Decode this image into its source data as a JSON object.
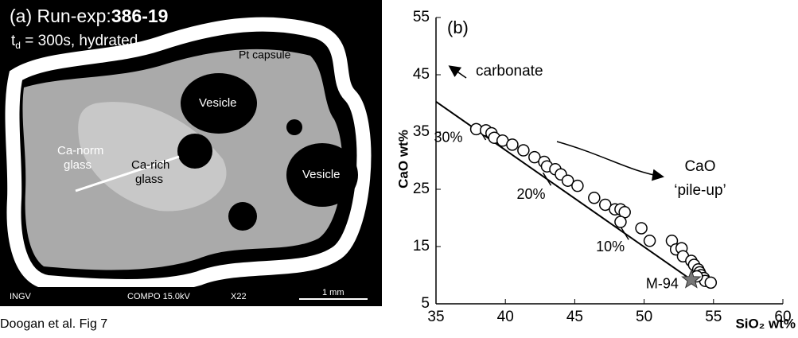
{
  "panel_a": {
    "label": "(a) Run-exp:",
    "run": "386-19",
    "time_parts": [
      "t",
      "d",
      " = 300s, hydrated"
    ],
    "capsule": "Pt capsule",
    "vesicles": [
      "Vesicle",
      "Vesicle"
    ],
    "glass_norm": [
      "Ca-norm",
      "glass"
    ],
    "glass_rich": [
      "Ca-rich",
      "glass"
    ],
    "footer": [
      "INGV",
      "COMPO  15.0kV",
      "X22",
      "1 mm"
    ]
  },
  "caption": "Doogan et al. Fig 7",
  "chart_data": {
    "type": "scatter",
    "panel_label": "(b)",
    "xlabel": "SiO₂ wt%",
    "ylabel": "CaO wt%",
    "x": [
      37.9,
      38.6,
      39.0,
      39.2,
      39.8,
      40.5,
      41.3,
      42.1,
      42.8,
      43.0,
      43.6,
      44.0,
      44.5,
      45.2,
      46.4,
      47.2,
      47.9,
      48.3,
      48.6,
      48.3,
      49.8,
      50.4,
      52.0,
      52.3,
      52.7,
      52.8,
      53.4,
      53.6,
      53.9,
      54.0,
      54.1,
      54.3,
      54.4,
      54.8,
      53.8
    ],
    "y": [
      35.5,
      35.3,
      34.8,
      34.0,
      33.5,
      32.8,
      31.8,
      30.6,
      29.8,
      29.0,
      28.5,
      27.6,
      26.5,
      25.6,
      23.5,
      22.3,
      21.5,
      21.5,
      21.0,
      19.3,
      18.2,
      16.0,
      16.0,
      14.5,
      14.7,
      13.3,
      12.5,
      11.8,
      11.0,
      10.5,
      10.0,
      9.5,
      9.0,
      8.7,
      9.8
    ],
    "xlim": [
      35,
      60
    ],
    "ylim": [
      5,
      55
    ],
    "xticks": [
      35,
      40,
      45,
      50,
      55,
      60
    ],
    "yticks": [
      5,
      15,
      25,
      35,
      45,
      55
    ],
    "fit_line": {
      "x": [
        35,
        53.4
      ],
      "y": [
        40.3,
        9.2
      ]
    },
    "line_ticks": [
      {
        "x": 38.3,
        "label": "30%"
      },
      {
        "x": 43.0,
        "label": "20%"
      },
      {
        "x": 48.6,
        "label": "10%"
      }
    ],
    "reference": {
      "name": "M-94",
      "x": 53.4,
      "y": 9.2,
      "color": "#777777"
    },
    "annotations": [
      "carbonate",
      "CaO",
      "‘pile-up’"
    ]
  }
}
